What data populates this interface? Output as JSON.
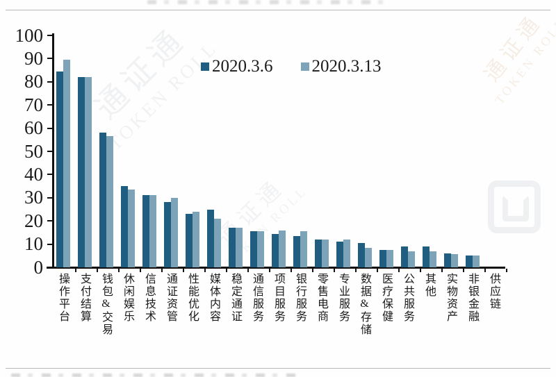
{
  "legend": {
    "series1_label": "2020.3.6",
    "series2_label": "2020.3.13"
  },
  "colors": {
    "series1": "#1f5e80",
    "series2": "#7ca3b7",
    "axis": "#111111"
  },
  "watermark": {
    "cn": "通证通",
    "en": "TOKEN ROLL"
  },
  "chart_data": {
    "type": "bar",
    "title": "",
    "xlabel": "",
    "ylabel": "",
    "ylim": [
      0,
      100
    ],
    "y_ticks": [
      0,
      10,
      20,
      30,
      40,
      50,
      60,
      70,
      80,
      90,
      100
    ],
    "grid": false,
    "legend_position": "top-center",
    "categories": [
      "操作平台",
      "支付结算",
      "钱包&交易",
      "休闲娱乐",
      "信息技术",
      "通证资管",
      "性能优化",
      "媒体内容",
      "稳定通证",
      "通信服务",
      "项目服务",
      "银行服务",
      "零售电商",
      "专业服务",
      "数据&存储",
      "医疗保健",
      "公共服务",
      "其他",
      "实物资产",
      "非银金融",
      "供应链"
    ],
    "series": [
      {
        "name": "2020.3.6",
        "color": "#1f5e80",
        "values": [
          84.5,
          82,
          58,
          35,
          31,
          28,
          23,
          25,
          17,
          15.5,
          14.5,
          13.5,
          12,
          11,
          10.5,
          7.5,
          9,
          9,
          6,
          5.2,
          0
        ]
      },
      {
        "name": "2020.3.13",
        "color": "#7ca3b7",
        "values": [
          89.5,
          82,
          56.5,
          33.5,
          31,
          30,
          24,
          21,
          17,
          15.5,
          16,
          15.5,
          12,
          12,
          8.5,
          7.5,
          7,
          7,
          5.7,
          5.2,
          0
        ]
      }
    ]
  }
}
